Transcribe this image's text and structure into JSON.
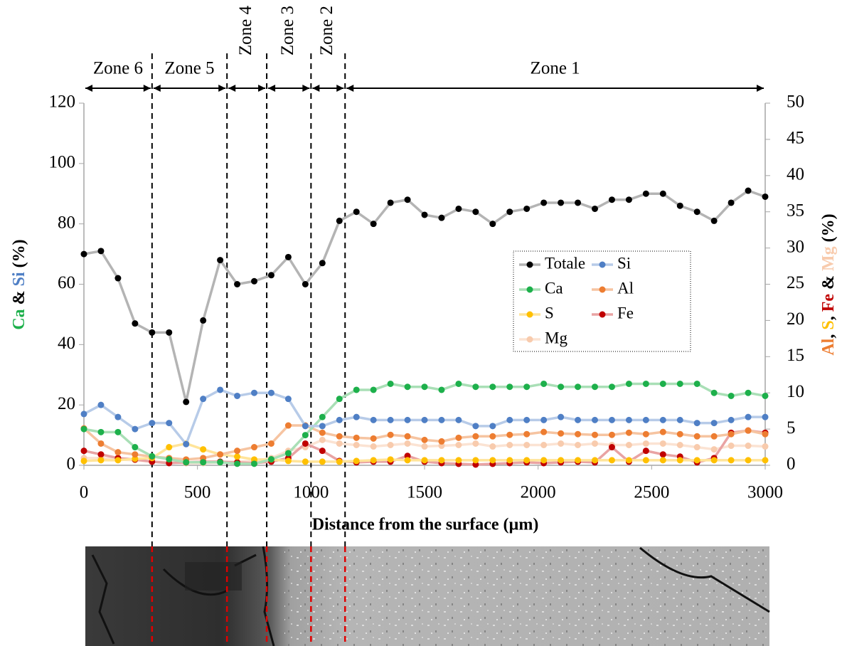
{
  "chart_data": {
    "type": "line",
    "x_label": "Distance from the surface (µm)",
    "y_label": [
      {
        "text": "Ca",
        "color": "#1db04b"
      },
      {
        "text": " & ",
        "color": "#000000"
      },
      {
        "text": "Si",
        "color": "#4f7fc5"
      },
      {
        "text": " (%)",
        "color": "#000000"
      }
    ],
    "y2_label": [
      {
        "text": "Al",
        "color": "#ed7d31"
      },
      {
        "text": ", ",
        "color": "#000000"
      },
      {
        "text": "S",
        "color": "#ffc000"
      },
      {
        "text": ", ",
        "color": "#000000"
      },
      {
        "text": "Fe",
        "color": "#c00000"
      },
      {
        "text": " & ",
        "color": "#000000"
      },
      {
        "text": "Mg",
        "color": "#f8cbad"
      },
      {
        "text": " (%)",
        "color": "#000000"
      }
    ],
    "xlim": [
      0,
      3000
    ],
    "xticks": [
      0,
      500,
      1000,
      1500,
      2000,
      2500,
      3000
    ],
    "ylim": [
      0,
      120
    ],
    "yticks": [
      0,
      20,
      40,
      60,
      80,
      100,
      120
    ],
    "y2lim": [
      0,
      50
    ],
    "y2ticks": [
      0,
      5,
      10,
      15,
      20,
      25,
      30,
      35,
      40,
      45,
      50
    ],
    "zones": [
      {
        "label": "Zone 6",
        "start": 0,
        "end": 300,
        "rotated": false
      },
      {
        "label": "Zone 5",
        "start": 300,
        "end": 630,
        "rotated": false
      },
      {
        "label": "Zone 4",
        "start": 630,
        "end": 805,
        "rotated": true
      },
      {
        "label": "Zone 3",
        "start": 805,
        "end": 1000,
        "rotated": true
      },
      {
        "label": "Zone 2",
        "start": 1000,
        "end": 1150,
        "rotated": true
      },
      {
        "label": "Zone 1",
        "start": 1150,
        "end": 3000,
        "rotated": false
      }
    ],
    "x": [
      0,
      75,
      150,
      225,
      300,
      375,
      450,
      525,
      600,
      675,
      750,
      825,
      900,
      975,
      1050,
      1125,
      1200,
      1275,
      1350,
      1425,
      1500,
      1575,
      1650,
      1725,
      1800,
      1875,
      1950,
      2025,
      2100,
      2175,
      2250,
      2325,
      2400,
      2475,
      2550,
      2625,
      2700,
      2775,
      2850,
      2925,
      3000
    ],
    "series": [
      {
        "name": "Totale",
        "color": "#000000",
        "line_color": "#b4b4b4",
        "axis": "y",
        "values": [
          70,
          71,
          62,
          47,
          44,
          44,
          21,
          48,
          68,
          60,
          61,
          63,
          69,
          60,
          67,
          81,
          84,
          80,
          87,
          88,
          83,
          82,
          85,
          84,
          80,
          84,
          85,
          87,
          87,
          87,
          85,
          88,
          88,
          90,
          90,
          86,
          84,
          81,
          87,
          91,
          89
        ]
      },
      {
        "name": "Si",
        "color": "#4f7fc5",
        "line_color": "#b7cbe8",
        "axis": "y",
        "values": [
          17,
          20,
          16,
          12,
          14,
          14,
          7,
          22,
          25,
          23,
          24,
          24,
          22,
          13,
          13,
          15,
          16,
          15,
          15,
          15,
          15,
          15,
          15,
          13,
          13,
          15,
          15,
          15,
          16,
          15,
          15,
          15,
          15,
          15,
          15,
          15,
          14,
          14,
          15,
          16,
          16
        ]
      },
      {
        "name": "Ca",
        "color": "#1db04b",
        "line_color": "#a9dfb6",
        "axis": "y",
        "values": [
          12,
          11,
          11,
          6,
          3,
          2,
          1,
          1,
          1,
          0.5,
          0.5,
          2,
          4,
          10,
          16,
          22,
          25,
          25,
          27,
          26,
          26,
          25,
          27,
          26,
          26,
          26,
          26,
          27,
          26,
          26,
          26,
          26,
          27,
          27,
          27,
          27,
          27,
          24,
          23,
          24,
          23
        ]
      },
      {
        "name": "Al",
        "color": "#ed7d31",
        "line_color": "#f6c4a1",
        "axis": "y2",
        "values": [
          5.1,
          3,
          1.8,
          1.5,
          1.2,
          1,
          0.8,
          1,
          1.5,
          2,
          2.5,
          3,
          5.5,
          5.5,
          4.5,
          4,
          3.8,
          3.7,
          4.2,
          4,
          3.5,
          3.3,
          3.8,
          4,
          4,
          4.2,
          4.3,
          4.6,
          4.4,
          4.3,
          4.2,
          4.2,
          4.5,
          4.3,
          4.6,
          4.3,
          4,
          4,
          4.3,
          4.8,
          4.3
        ]
      },
      {
        "name": "S",
        "color": "#ffc000",
        "line_color": "#ffe49a",
        "axis": "y2",
        "values": [
          0.6,
          0.7,
          0.7,
          0.9,
          1,
          2.5,
          3,
          2.2,
          1.5,
          1.2,
          0.8,
          0.8,
          0.6,
          0.5,
          0.5,
          0.5,
          0.6,
          0.7,
          0.8,
          0.7,
          0.7,
          0.7,
          0.7,
          0.7,
          0.7,
          0.7,
          0.7,
          0.7,
          0.7,
          0.7,
          0.7,
          0.7,
          0.7,
          0.7,
          0.7,
          0.7,
          0.7,
          0.7,
          0.7,
          0.7,
          0.7
        ]
      },
      {
        "name": "Fe",
        "color": "#c00000",
        "line_color": "#e9a3a3",
        "axis": "y2",
        "values": [
          2,
          1.5,
          1,
          0.8,
          0.5,
          0.3,
          0.4,
          0.5,
          0.5,
          0.4,
          0.3,
          0.5,
          1,
          3,
          2,
          0.6,
          0.4,
          0.5,
          0.5,
          1.3,
          0.5,
          0.3,
          0.2,
          0.1,
          0.2,
          0.3,
          0.4,
          0.3,
          0.4,
          0.5,
          0.4,
          2.5,
          0.5,
          2,
          1.5,
          1.2,
          0.4,
          1,
          4.5,
          4.8,
          4.5
        ]
      },
      {
        "name": "Mg",
        "color": "#f8cbad",
        "line_color": "#fbe3d3",
        "axis": "y2",
        "values": [
          1,
          1,
          0.8,
          0.7,
          0.5,
          0.4,
          0.3,
          0.3,
          0.4,
          0.5,
          0.6,
          1,
          2,
          2.5,
          3.5,
          3,
          2.8,
          2.6,
          2.8,
          3,
          2.6,
          2.7,
          2.8,
          3,
          2.6,
          2.8,
          2.8,
          2.8,
          3,
          2.8,
          3,
          2.8,
          2.8,
          3,
          3,
          2.8,
          2.5,
          2.2,
          2.7,
          2.7,
          2.6
        ]
      }
    ]
  }
}
